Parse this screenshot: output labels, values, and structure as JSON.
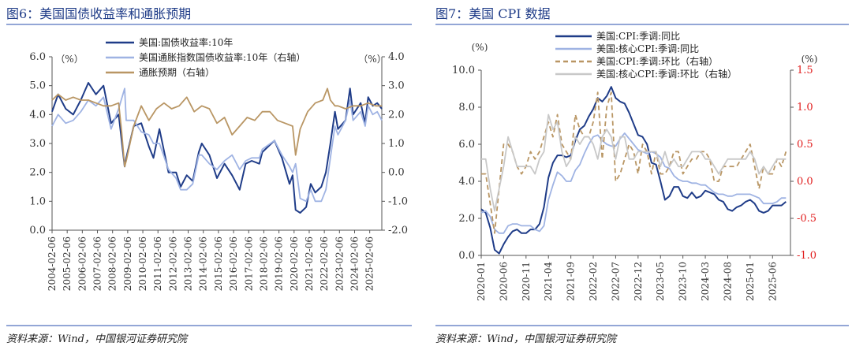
{
  "left_panel": {
    "heading": "图6：美国国债收益率和通胀预期",
    "source": "资料来源：Wind，中国银河证券研究院"
  },
  "right_panel": {
    "heading": "图7：美国 CPI 数据",
    "source": "资料来源：Wind，中国银河证券研究院"
  },
  "colors": {
    "heading": "#1f3c88",
    "rule": "#93a6d6",
    "navy": "#1f3c88",
    "lightblue": "#9fb3e3",
    "tan": "#b99664",
    "grey": "#c8c8c8",
    "red": "#e11f1f"
  },
  "chart_data": [
    {
      "type": "line",
      "left_unit": "（%）",
      "right_unit": "（%）",
      "yaxis_left": {
        "range": [
          0.0,
          6.0
        ],
        "ticks": [
          "0.0",
          "1.0",
          "2.0",
          "3.0",
          "4.0",
          "5.0",
          "6.0"
        ]
      },
      "yaxis_right": {
        "range": [
          -2.0,
          4.0
        ],
        "ticks": [
          "-2.0",
          "-1.0",
          "0.0",
          "1.0",
          "2.0",
          "3.0",
          "4.0"
        ]
      },
      "x_tick_labels": [
        "2004-02-06",
        "2005-02-06",
        "2006-02-06",
        "2007-02-06",
        "2008-02-06",
        "2009-02-06",
        "2010-02-06",
        "2011-02-06",
        "2012-02-06",
        "2013-02-06",
        "2014-02-06",
        "2015-02-06",
        "2016-02-06",
        "2017-02-06",
        "2018-02-06",
        "2019-02-06",
        "2020-02-06",
        "2021-02-06",
        "2022-02-06",
        "2023-02-06",
        "2024-02-06",
        "2025-02-06"
      ],
      "x_range": [
        2004.1,
        2025.9
      ],
      "legend_position": "top",
      "series": [
        {
          "name": "美国:国债收益率:10年",
          "axis": "left",
          "color": "navy",
          "x": [
            2004.1,
            2004.5,
            2005.0,
            2005.5,
            2006.0,
            2006.5,
            2007.0,
            2007.5,
            2008.0,
            2008.5,
            2008.9,
            2009.0,
            2009.5,
            2010.0,
            2010.5,
            2010.8,
            2011.2,
            2011.8,
            2012.3,
            2012.6,
            2013.0,
            2013.4,
            2013.8,
            2014.0,
            2014.5,
            2015.0,
            2015.5,
            2016.0,
            2016.5,
            2016.9,
            2017.3,
            2017.8,
            2018.0,
            2018.8,
            2019.3,
            2019.8,
            2020.0,
            2020.2,
            2020.5,
            2020.9,
            2021.2,
            2021.5,
            2021.9,
            2022.2,
            2022.5,
            2022.8,
            2023.0,
            2023.5,
            2023.8,
            2024.0,
            2024.5,
            2024.8,
            2025.0,
            2025.3,
            2025.6,
            2025.9
          ],
          "y": [
            4.1,
            4.7,
            4.2,
            4.0,
            4.5,
            5.1,
            4.7,
            5.0,
            3.7,
            4.0,
            2.2,
            2.5,
            3.6,
            3.7,
            2.9,
            2.5,
            3.5,
            2.0,
            2.0,
            1.5,
            1.9,
            1.7,
            2.7,
            3.0,
            2.6,
            1.8,
            2.3,
            1.9,
            1.4,
            2.3,
            2.4,
            2.3,
            2.7,
            3.1,
            2.5,
            1.6,
            1.9,
            0.7,
            0.6,
            0.8,
            1.6,
            1.3,
            1.5,
            2.0,
            3.0,
            4.1,
            3.5,
            3.8,
            4.9,
            4.0,
            4.4,
            3.7,
            4.6,
            4.3,
            4.4,
            4.2
          ]
        },
        {
          "name": "美国通胀指数国债收益率:10年（右轴）",
          "axis": "right",
          "color": "lightblue",
          "x": [
            2004.1,
            2004.5,
            2005.0,
            2005.5,
            2006.0,
            2006.5,
            2007.0,
            2007.5,
            2008.0,
            2008.5,
            2008.9,
            2009.0,
            2009.5,
            2010.0,
            2010.5,
            2010.8,
            2011.2,
            2011.8,
            2012.3,
            2012.6,
            2013.0,
            2013.4,
            2013.8,
            2014.0,
            2014.5,
            2015.0,
            2015.5,
            2016.0,
            2016.5,
            2016.9,
            2017.3,
            2017.8,
            2018.0,
            2018.8,
            2019.3,
            2019.8,
            2020.0,
            2020.2,
            2020.5,
            2020.9,
            2021.2,
            2021.5,
            2021.9,
            2022.2,
            2022.5,
            2022.8,
            2023.0,
            2023.5,
            2023.8,
            2024.0,
            2024.5,
            2024.8,
            2025.0,
            2025.3,
            2025.6,
            2025.9
          ],
          "y": [
            1.6,
            2.0,
            1.7,
            1.8,
            2.1,
            2.5,
            2.3,
            2.6,
            1.5,
            2.2,
            2.9,
            1.8,
            1.8,
            1.4,
            1.3,
            1.0,
            1.0,
            0.1,
            -0.2,
            -0.6,
            -0.6,
            -0.4,
            0.6,
            0.6,
            0.3,
            0.1,
            0.4,
            0.6,
            0.1,
            0.4,
            0.5,
            0.5,
            0.8,
            1.1,
            0.6,
            0.2,
            0.0,
            0.3,
            -0.9,
            -1.0,
            -0.6,
            -1.0,
            -1.0,
            -0.6,
            0.5,
            1.6,
            1.3,
            1.8,
            2.5,
            1.8,
            2.1,
            1.6,
            2.3,
            2.0,
            2.1,
            1.8
          ]
        },
        {
          "name": "通胀预期（右轴）",
          "axis": "right",
          "color": "tan",
          "x": [
            2004.1,
            2004.5,
            2005.0,
            2005.5,
            2006.0,
            2006.5,
            2007.0,
            2007.5,
            2008.0,
            2008.5,
            2008.7,
            2008.9,
            2009.0,
            2009.5,
            2010.0,
            2010.5,
            2011.0,
            2011.5,
            2012.0,
            2012.5,
            2013.0,
            2013.5,
            2014.0,
            2014.5,
            2015.0,
            2015.5,
            2016.0,
            2016.5,
            2017.0,
            2017.5,
            2018.0,
            2018.5,
            2019.0,
            2019.5,
            2020.0,
            2020.2,
            2020.5,
            2021.0,
            2021.5,
            2022.0,
            2022.3,
            2022.5,
            2022.8,
            2023.0,
            2023.5,
            2024.0,
            2024.5,
            2025.0,
            2025.5,
            2025.9
          ],
          "y": [
            2.5,
            2.7,
            2.5,
            2.6,
            2.5,
            2.5,
            2.4,
            2.3,
            2.3,
            2.4,
            1.4,
            0.2,
            0.4,
            1.6,
            2.3,
            1.8,
            2.2,
            2.4,
            2.2,
            2.3,
            2.6,
            2.1,
            2.3,
            2.2,
            1.7,
            1.9,
            1.3,
            1.6,
            1.9,
            1.8,
            2.1,
            2.1,
            1.8,
            1.7,
            1.6,
            0.6,
            1.5,
            2.1,
            2.4,
            2.5,
            2.9,
            2.5,
            2.3,
            2.3,
            2.2,
            2.3,
            2.3,
            2.4,
            2.3,
            2.3
          ]
        }
      ]
    },
    {
      "type": "line",
      "left_unit": "(%)",
      "right_unit": "(%)",
      "yaxis_left": {
        "range": [
          0.0,
          10.0
        ],
        "ticks": [
          "0.0",
          "2.0",
          "4.0",
          "6.0",
          "8.0",
          "10.0"
        ]
      },
      "yaxis_right": {
        "range": [
          -1.0,
          1.5
        ],
        "ticks": [
          "-1.0",
          "-0.5",
          "0.0",
          "0.5",
          "1.0",
          "1.5"
        ]
      },
      "x_tick_labels": [
        "2020-01",
        "2020-06",
        "2020-11",
        "2021-04",
        "2021-09",
        "2022-02",
        "2022-07",
        "2022-12",
        "2023-05",
        "2023-10",
        "2024-03",
        "2024-08",
        "2025-01",
        "2025-06"
      ],
      "x_range": [
        0,
        69
      ],
      "legend_position": "top",
      "series": [
        {
          "name": "美国:CPI:季调:同比",
          "axis": "left",
          "color": "navy",
          "x": [
            0,
            1,
            2,
            3,
            4,
            5,
            6,
            7,
            8,
            9,
            10,
            11,
            12,
            13,
            14,
            15,
            16,
            17,
            18,
            19,
            20,
            21,
            22,
            23,
            24,
            25,
            26,
            27,
            28,
            29,
            30,
            31,
            32,
            33,
            34,
            35,
            36,
            37,
            38,
            39,
            40,
            41,
            42,
            43,
            44,
            45,
            46,
            47,
            48,
            49,
            50,
            51,
            52,
            53,
            54,
            55,
            56,
            57,
            58,
            59,
            60,
            61,
            62,
            63,
            64,
            65,
            66,
            67,
            68
          ],
          "y": [
            2.5,
            2.3,
            1.5,
            0.3,
            0.1,
            0.6,
            1.0,
            1.3,
            1.4,
            1.2,
            1.2,
            1.4,
            1.4,
            1.7,
            2.6,
            4.2,
            5.0,
            5.4,
            5.4,
            5.3,
            5.4,
            6.2,
            6.8,
            7.0,
            7.5,
            7.9,
            8.5,
            8.3,
            8.6,
            9.1,
            8.5,
            8.3,
            8.2,
            7.7,
            7.1,
            6.5,
            6.4,
            6.0,
            5.0,
            4.9,
            4.0,
            3.0,
            3.2,
            3.7,
            3.7,
            3.2,
            3.1,
            3.4,
            3.1,
            3.2,
            3.5,
            3.4,
            3.3,
            3.0,
            2.9,
            2.5,
            2.4,
            2.6,
            2.7,
            2.9,
            3.0,
            2.8,
            2.4,
            2.3,
            2.4,
            2.7,
            2.7,
            2.7,
            2.9
          ]
        },
        {
          "name": "美国:核心CPI:季调:同比",
          "axis": "left",
          "color": "lightblue",
          "x": [
            0,
            1,
            2,
            3,
            4,
            5,
            6,
            7,
            8,
            9,
            10,
            11,
            12,
            13,
            14,
            15,
            16,
            17,
            18,
            19,
            20,
            21,
            22,
            23,
            24,
            25,
            26,
            27,
            28,
            29,
            30,
            31,
            32,
            33,
            34,
            35,
            36,
            37,
            38,
            39,
            40,
            41,
            42,
            43,
            44,
            45,
            46,
            47,
            48,
            49,
            50,
            51,
            52,
            53,
            54,
            55,
            56,
            57,
            58,
            59,
            60,
            61,
            62,
            63,
            64,
            65,
            66,
            67,
            68
          ],
          "y": [
            2.3,
            2.4,
            2.1,
            1.4,
            1.2,
            1.2,
            1.6,
            1.7,
            1.7,
            1.6,
            1.6,
            1.6,
            1.4,
            1.3,
            1.6,
            3.0,
            3.8,
            4.5,
            4.3,
            4.0,
            4.0,
            4.6,
            4.9,
            5.5,
            6.0,
            6.4,
            6.5,
            6.2,
            6.0,
            5.9,
            5.9,
            6.3,
            6.6,
            6.3,
            6.0,
            5.7,
            5.6,
            5.5,
            5.6,
            5.5,
            5.3,
            4.8,
            4.7,
            4.3,
            4.1,
            4.0,
            4.0,
            3.9,
            3.9,
            3.8,
            3.8,
            3.6,
            3.4,
            3.3,
            3.3,
            3.2,
            3.2,
            3.3,
            3.3,
            3.3,
            3.3,
            3.2,
            3.1,
            2.8,
            2.8,
            2.8,
            2.9,
            3.1,
            3.1
          ]
        },
        {
          "name": "美国:CPI:季调:环比（右轴）",
          "axis": "right",
          "color": "tan",
          "dashed": true,
          "x": [
            0,
            1,
            2,
            3,
            4,
            5,
            6,
            7,
            8,
            9,
            10,
            11,
            12,
            13,
            14,
            15,
            16,
            17,
            18,
            19,
            20,
            21,
            22,
            23,
            24,
            25,
            26,
            27,
            28,
            29,
            30,
            31,
            32,
            33,
            34,
            35,
            36,
            37,
            38,
            39,
            40,
            41,
            42,
            43,
            44,
            45,
            46,
            47,
            48,
            49,
            50,
            51,
            52,
            53,
            54,
            55,
            56,
            57,
            58,
            59,
            60,
            61,
            62,
            63,
            64,
            65,
            66,
            67,
            68
          ],
          "y": [
            0.1,
            0.1,
            -0.3,
            -0.7,
            -0.1,
            0.5,
            0.5,
            0.4,
            0.2,
            0.1,
            0.2,
            0.4,
            0.3,
            0.4,
            0.6,
            0.8,
            0.6,
            0.9,
            0.5,
            0.4,
            0.3,
            0.9,
            0.7,
            0.6,
            0.6,
            0.8,
            1.2,
            0.3,
            1.0,
            1.2,
            0.0,
            0.1,
            0.3,
            0.5,
            0.4,
            0.1,
            0.5,
            0.4,
            0.1,
            0.4,
            0.1,
            0.1,
            0.2,
            0.4,
            0.4,
            0.1,
            0.2,
            0.3,
            0.3,
            0.4,
            0.4,
            0.3,
            0.0,
            0.0,
            0.2,
            0.2,
            0.2,
            0.2,
            0.3,
            0.4,
            0.5,
            0.2,
            -0.1,
            0.2,
            0.1,
            0.1,
            0.3,
            0.2,
            0.4
          ]
        },
        {
          "name": "美国:核心CPI:季调:环比（右轴）",
          "axis": "right",
          "color": "grey",
          "x": [
            0,
            1,
            2,
            3,
            4,
            5,
            6,
            7,
            8,
            9,
            10,
            11,
            12,
            13,
            14,
            15,
            16,
            17,
            18,
            19,
            20,
            21,
            22,
            23,
            24,
            25,
            26,
            27,
            28,
            29,
            30,
            31,
            32,
            33,
            34,
            35,
            36,
            37,
            38,
            39,
            40,
            41,
            42,
            43,
            44,
            45,
            46,
            47,
            48,
            49,
            50,
            51,
            52,
            53,
            54,
            55,
            56,
            57,
            58,
            59,
            60,
            61,
            62,
            63,
            64,
            65,
            66,
            67,
            68
          ],
          "y": [
            0.3,
            0.3,
            -0.1,
            -0.4,
            -0.1,
            0.2,
            0.6,
            0.4,
            0.2,
            0.2,
            0.2,
            0.2,
            0.1,
            0.3,
            0.4,
            0.9,
            0.7,
            0.8,
            0.4,
            0.2,
            0.3,
            0.6,
            0.5,
            0.6,
            0.6,
            0.5,
            0.3,
            0.6,
            0.7,
            0.6,
            0.3,
            0.6,
            0.6,
            0.3,
            0.3,
            0.4,
            0.4,
            0.4,
            0.4,
            0.4,
            0.2,
            0.4,
            0.2,
            0.3,
            0.2,
            0.2,
            0.3,
            0.4,
            0.4,
            0.4,
            0.3,
            0.3,
            0.2,
            0.1,
            0.2,
            0.3,
            0.3,
            0.3,
            0.3,
            0.3,
            0.4,
            0.3,
            0.1,
            0.2,
            0.1,
            0.2,
            0.3,
            0.3,
            0.3
          ]
        }
      ]
    }
  ]
}
